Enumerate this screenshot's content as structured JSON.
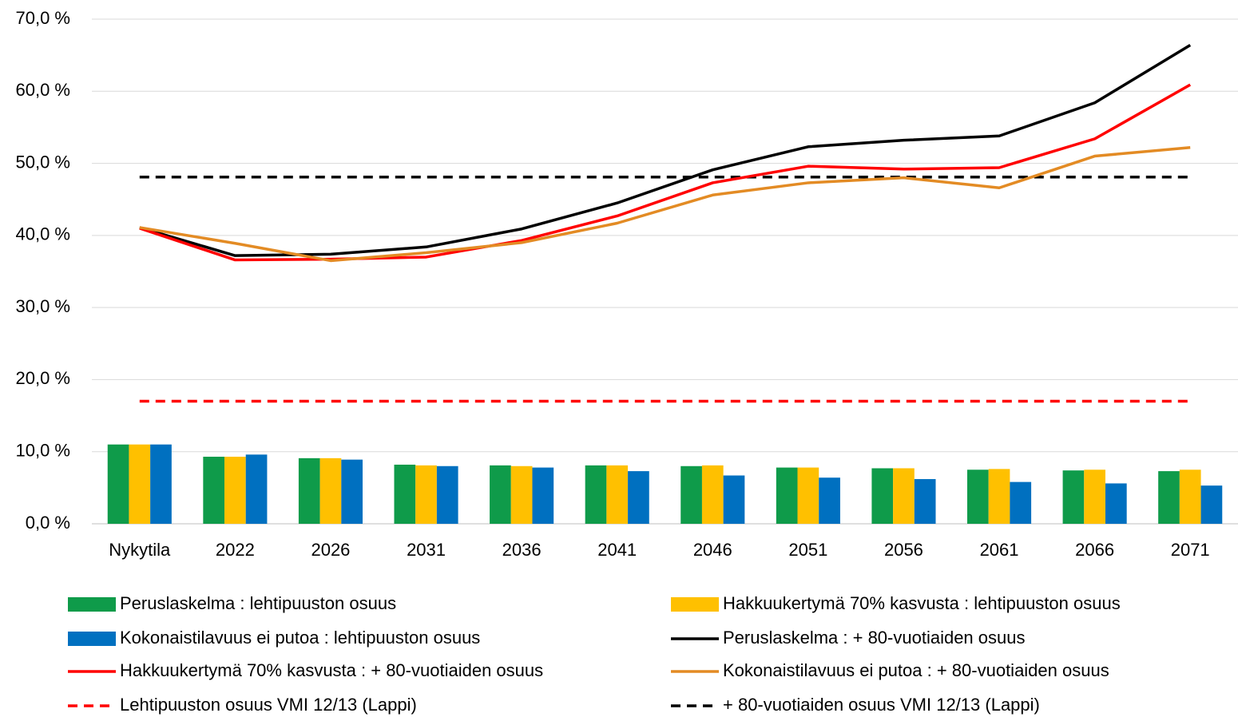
{
  "chart_data": {
    "type": "bar-line",
    "categories": [
      "Nykytila",
      "2022",
      "2026",
      "2031",
      "2036",
      "2041",
      "2046",
      "2051",
      "2056",
      "2061",
      "2066",
      "2071"
    ],
    "ylim": [
      0,
      70
    ],
    "yticks": [
      {
        "value": 0,
        "label": "0,0 %"
      },
      {
        "value": 10,
        "label": "10,0 %"
      },
      {
        "value": 20,
        "label": "20,0 %"
      },
      {
        "value": 30,
        "label": "30,0 %"
      },
      {
        "value": 40,
        "label": "40,0 %"
      },
      {
        "value": 50,
        "label": "50,0 %"
      },
      {
        "value": 60,
        "label": "60,0 %"
      },
      {
        "value": 70,
        "label": "70,0 %"
      }
    ],
    "grid": true,
    "legend": "bottom",
    "series": [
      {
        "name": "Peruslaskelma : lehtipuuston osuus",
        "type": "bar",
        "color": "#0f9b4a",
        "values": [
          11.0,
          9.3,
          9.1,
          8.2,
          8.1,
          8.1,
          8.0,
          7.8,
          7.7,
          7.5,
          7.4,
          7.3
        ]
      },
      {
        "name": "Hakkuukertymä 70% kasvusta : lehtipuuston osuus",
        "type": "bar",
        "color": "#ffc000",
        "values": [
          11.0,
          9.3,
          9.1,
          8.1,
          8.0,
          8.1,
          8.1,
          7.8,
          7.7,
          7.6,
          7.5,
          7.5
        ]
      },
      {
        "name": "Kokonaistilavuus ei putoa : lehtipuuston osuus",
        "type": "bar",
        "color": "#0070c0",
        "values": [
          11.0,
          9.6,
          8.9,
          8.0,
          7.8,
          7.3,
          6.7,
          6.4,
          6.2,
          5.8,
          5.6,
          5.3
        ]
      },
      {
        "name": "Peruslaskelma : + 80-vuotiaiden osuus",
        "type": "line",
        "color": "#000000",
        "values": [
          41.1,
          37.2,
          37.4,
          38.4,
          40.9,
          44.5,
          49.1,
          52.3,
          53.2,
          53.8,
          58.4,
          66.4
        ]
      },
      {
        "name": "Hakkuukertymä 70% kasvusta : + 80-vuotiaiden osuus",
        "type": "line",
        "color": "#ff0000",
        "values": [
          41.0,
          36.6,
          36.7,
          37.0,
          39.3,
          42.7,
          47.3,
          49.6,
          49.2,
          49.4,
          53.4,
          60.9
        ]
      },
      {
        "name": "Kokonaistilavuus ei putoa : + 80-vuotiaiden osuus",
        "type": "line",
        "color": "#e38b24",
        "values": [
          41.1,
          38.9,
          36.5,
          37.6,
          39.0,
          41.7,
          45.6,
          47.3,
          48.0,
          46.6,
          51.0,
          52.2
        ]
      },
      {
        "name": "Lehtipuuston osuus VMI 12/13 (Lappi)",
        "type": "hline",
        "dash": true,
        "color": "#ff0000",
        "value": 17.0
      },
      {
        "name": "+ 80-vuotiaiden osuus VMI 12/13 (Lappi)",
        "type": "hline",
        "dash": true,
        "color": "#000000",
        "value": 48.1
      }
    ]
  }
}
